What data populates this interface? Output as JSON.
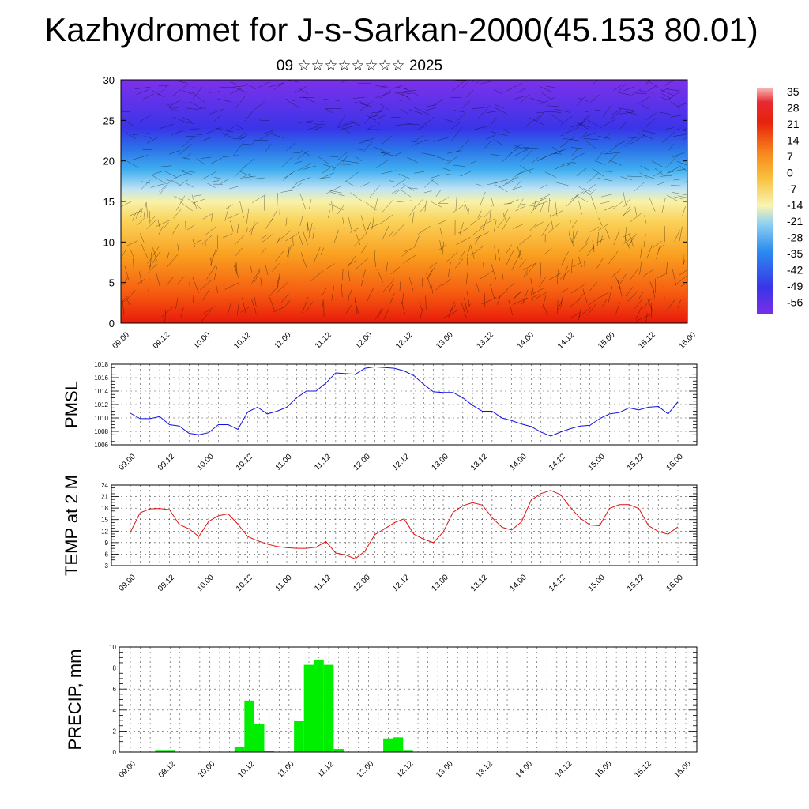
{
  "header": {
    "title": "Kazhydromet for J-s-Sarkan-2000(45.153 80.01)",
    "subtitle": "09 ☆☆☆☆☆☆☆☆ 2025"
  },
  "chart_data": [
    {
      "type": "heatmap",
      "panel": "temperature-wind-cross-section",
      "x_tick_labels": [
        "09.00",
        "09.12",
        "10.00",
        "10.12",
        "11.00",
        "11.12",
        "12.00",
        "12.12",
        "13.00",
        "13.12",
        "14.00",
        "14.12",
        "15.00",
        "15.12",
        "16.00"
      ],
      "y_ticks": [
        0,
        5,
        10,
        15,
        20,
        25,
        30
      ],
      "ylim": [
        0,
        30
      ],
      "colorbar_labels": [
        "35",
        "28",
        "21",
        "14",
        "7",
        "0",
        "-7",
        "-14",
        "-21",
        "-28",
        "-35",
        "-42",
        "-49",
        "-56"
      ],
      "colorbar_range": [
        -60,
        40
      ],
      "colors": {
        "cold": "#6a1fe0",
        "cool": "#2aa0f0",
        "mild": "#f5f090",
        "warm": "#fba520",
        "hot": "#e8150a"
      }
    },
    {
      "type": "line",
      "ylabel": "PMSL",
      "ylim": [
        1006,
        1018
      ],
      "y_ticks": [
        1006,
        1008,
        1010,
        1012,
        1014,
        1016,
        1018
      ],
      "x_tick_labels": [
        "09.00",
        "09.12",
        "10.00",
        "10.12",
        "11.00",
        "11.12",
        "12.00",
        "12.12",
        "13.00",
        "13.12",
        "14.00",
        "14.12",
        "15.00",
        "15.12",
        "16.00"
      ],
      "color": "#1010e0",
      "values": [
        1010.7,
        1009.9,
        1009.9,
        1010.2,
        1009.0,
        1008.8,
        1007.7,
        1007.5,
        1007.8,
        1009.0,
        1009.0,
        1008.3,
        1010.9,
        1011.6,
        1010.6,
        1011.0,
        1011.6,
        1013.0,
        1014.0,
        1014.0,
        1015.2,
        1016.7,
        1016.6,
        1016.5,
        1017.4,
        1017.6,
        1017.5,
        1017.4,
        1017.0,
        1016.3,
        1015.0,
        1013.9,
        1013.8,
        1013.8,
        1013.0,
        1011.9,
        1011.0,
        1011.0,
        1010.0,
        1009.6,
        1009.1,
        1008.7,
        1007.9,
        1007.3,
        1007.9,
        1008.4,
        1008.8,
        1008.9,
        1009.9,
        1010.6,
        1010.8,
        1011.5,
        1011.2,
        1011.6,
        1011.7,
        1010.6,
        1012.4
      ]
    },
    {
      "type": "line",
      "ylabel": "TEMP at 2 M",
      "ylim": [
        3,
        24
      ],
      "y_ticks": [
        3,
        6,
        9,
        12,
        15,
        18,
        21,
        24
      ],
      "x_tick_labels": [
        "09.00",
        "09.12",
        "10.00",
        "10.12",
        "11.00",
        "11.12",
        "12.00",
        "12.12",
        "13.00",
        "13.12",
        "14.00",
        "14.12",
        "15.00",
        "15.12",
        "16.00"
      ],
      "color": "#e01010",
      "values": [
        11.7,
        16.8,
        17.8,
        17.9,
        17.6,
        13.7,
        12.6,
        10.6,
        14.5,
        16.0,
        16.5,
        13.8,
        10.6,
        9.5,
        8.6,
        8.0,
        7.7,
        7.5,
        7.5,
        7.8,
        9.3,
        6.3,
        5.8,
        4.8,
        6.8,
        11.1,
        12.6,
        14.2,
        15.2,
        11.2,
        9.9,
        9.0,
        11.8,
        16.9,
        18.6,
        19.4,
        18.8,
        15.5,
        13.0,
        12.3,
        14.4,
        20.1,
        21.8,
        22.6,
        21.5,
        18.2,
        15.4,
        13.6,
        13.4,
        17.9,
        18.9,
        18.9,
        17.9,
        13.4,
        11.9,
        11.2,
        13.1
      ]
    },
    {
      "type": "bar",
      "ylabel": "PRECIP, mm",
      "ylim": [
        0,
        10
      ],
      "y_ticks": [
        0,
        2,
        4,
        6,
        8,
        10
      ],
      "x_tick_labels": [
        "09.00",
        "09.12",
        "10.00",
        "10.12",
        "11.00",
        "11.12",
        "12.00",
        "12.12",
        "13.00",
        "13.12",
        "14.00",
        "14.12",
        "15.00",
        "15.12",
        "16.00"
      ],
      "color": "#00ee00",
      "values": [
        0,
        0,
        0,
        0.2,
        0.2,
        0,
        0,
        0,
        0,
        0,
        0,
        0.5,
        4.9,
        2.7,
        0.1,
        0,
        0,
        3.0,
        8.3,
        8.8,
        8.3,
        0.3,
        0,
        0,
        0,
        0,
        1.3,
        1.4,
        0.2,
        0,
        0,
        0,
        0,
        0,
        0,
        0,
        0,
        0,
        0,
        0,
        0,
        0,
        0,
        0,
        0,
        0,
        0,
        0,
        0,
        0,
        0,
        0,
        0,
        0,
        0,
        0,
        0
      ]
    }
  ]
}
